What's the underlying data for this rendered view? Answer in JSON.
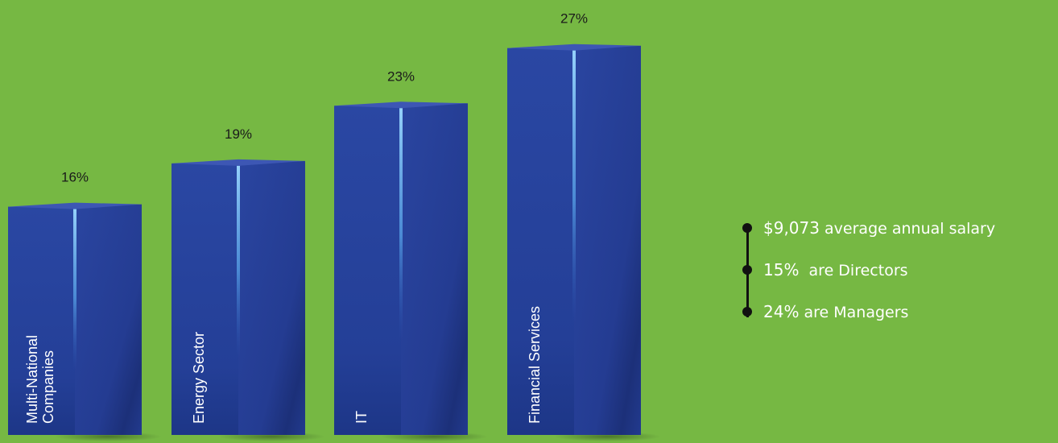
{
  "colors": {
    "background": "#76b843",
    "bar_front": "#26419a",
    "bar_side": "#1f3585",
    "bar_top": "#3d57b4",
    "highlight": "#8fd3ff",
    "label_text": "#1a1a1a",
    "stat_text": "#ffffff",
    "connector": "#111111"
  },
  "chart_data": {
    "type": "bar",
    "categories": [
      "Multi-National Companies",
      "Energy Sector",
      "IT",
      "Financial Services"
    ],
    "category_lines": [
      [
        "Multi-National",
        "Companies"
      ],
      [
        "Energy Sector"
      ],
      [
        "IT"
      ],
      [
        "Financial Services"
      ]
    ],
    "values": [
      16,
      19,
      23,
      27
    ],
    "value_labels": [
      "16%",
      "19%",
      "23%",
      "27%"
    ],
    "unit": "%",
    "ylim": [
      0,
      30
    ],
    "grid": false,
    "legend": "none"
  },
  "stats": [
    {
      "value": "$9,073",
      "label": "average annual salary"
    },
    {
      "value": "15%",
      "label": " are Directors"
    },
    {
      "value": "24%",
      "label": "are Managers"
    }
  ]
}
